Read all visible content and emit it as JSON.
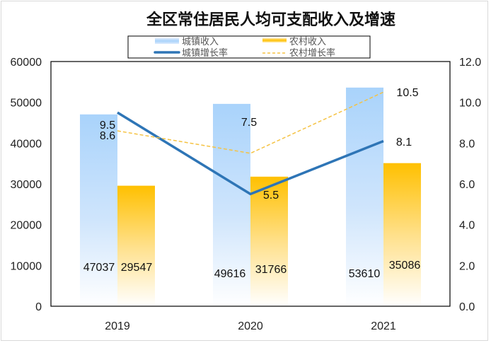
{
  "chart_data": {
    "type": "bar+line",
    "title": "全区常住居民人均可支配收入及增速",
    "categories": [
      "2019",
      "2020",
      "2021"
    ],
    "bar_series": [
      {
        "name": "城镇收入",
        "values": [
          47037,
          49616,
          53610
        ],
        "color": "#a9d3fb",
        "labels": [
          "47037",
          "49616",
          "53610"
        ]
      },
      {
        "name": "农村收入",
        "values": [
          29547,
          31766,
          35086
        ],
        "color": "#ffc000",
        "labels": [
          "29547",
          "31766",
          "35086"
        ]
      }
    ],
    "line_series": [
      {
        "name": "城镇增长率",
        "values": [
          9.5,
          5.5,
          8.1
        ],
        "color": "#2e75b6",
        "style": "solid",
        "labels": [
          "9.5",
          "5.5",
          "8.1"
        ]
      },
      {
        "name": "农村增长率",
        "values": [
          8.6,
          7.5,
          10.5
        ],
        "color": "#f5c242",
        "style": "dashed",
        "labels": [
          "8.6",
          "7.5",
          "10.5"
        ]
      }
    ],
    "y_left": {
      "min": 0,
      "max": 60000,
      "ticks": [
        "0",
        "10000",
        "20000",
        "30000",
        "40000",
        "50000",
        "60000"
      ]
    },
    "y_right": {
      "min": 0,
      "max": 12,
      "ticks": [
        "0.0",
        "2.0",
        "4.0",
        "6.0",
        "8.0",
        "10.0",
        "12.0"
      ]
    },
    "legend_position": "top",
    "grid": false
  }
}
